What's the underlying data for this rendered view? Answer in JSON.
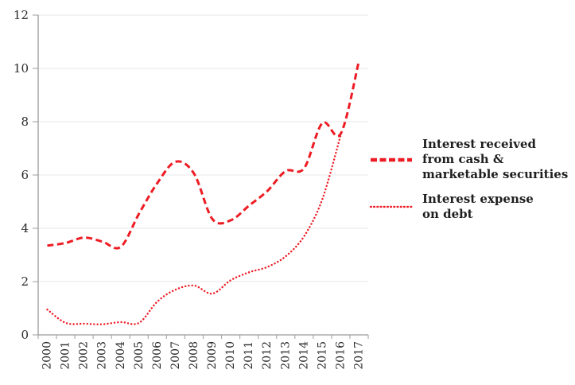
{
  "chart": {
    "colors": {
      "series_red": "#ed1c24",
      "axis": "#9a9a9a",
      "tick": "#aeaeae",
      "gridline": "#e7e7e7",
      "axis_label": "#2b2b2b",
      "legend_text": "#1f1f1f",
      "background": "#ffffff"
    }
  },
  "chart_data": {
    "type": "line",
    "title": "",
    "categories": [
      "2000",
      "2001",
      "2002",
      "2003",
      "2004",
      "2005",
      "2006",
      "2007",
      "2008",
      "2009",
      "2010",
      "2011",
      "2012",
      "2013",
      "2014",
      "2015",
      "2016",
      "2017"
    ],
    "series": [
      {
        "name": "Interest received from cash & marketable securities",
        "line_style": "dashed",
        "color": "#ed1c24",
        "values": [
          3.35,
          3.45,
          3.65,
          3.5,
          3.3,
          4.55,
          5.7,
          6.5,
          6.05,
          4.35,
          4.3,
          4.85,
          5.4,
          6.15,
          6.25,
          7.95,
          7.55,
          10.3
        ]
      },
      {
        "name": "Interest expense on debt",
        "line_style": "dotted",
        "color": "#ed1c24",
        "values": [
          0.95,
          0.45,
          0.42,
          0.4,
          0.48,
          0.45,
          1.25,
          1.7,
          1.85,
          1.55,
          2.05,
          2.35,
          2.55,
          2.95,
          3.7,
          5.1,
          7.5,
          null
        ]
      }
    ],
    "ylim": [
      0,
      12
    ],
    "y_ticks": [
      0,
      2,
      4,
      6,
      8,
      10,
      12
    ],
    "grid": "horizontal-light",
    "legend_position": "right",
    "x_tick_style": "between-categories",
    "x_label_rotation": -90,
    "line_smoothing": true
  },
  "legend": {
    "items": [
      {
        "lines": [
          "Interest received",
          "from cash &",
          "marketable securities"
        ],
        "style": "dashed"
      },
      {
        "lines": [
          "Interest expense",
          "on debt"
        ],
        "style": "dotted"
      }
    ]
  }
}
